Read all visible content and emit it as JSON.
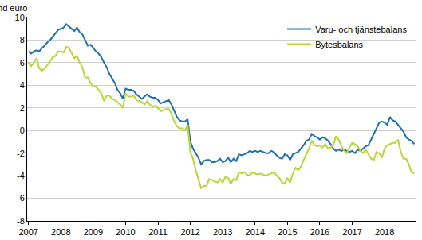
{
  "chart_data": {
    "type": "line",
    "ylabel": "md euro",
    "categories": [
      "2007",
      null,
      null,
      null,
      null,
      null,
      null,
      null,
      null,
      null,
      null,
      null,
      "2008",
      null,
      null,
      null,
      null,
      null,
      null,
      null,
      null,
      null,
      null,
      null,
      "2009",
      null,
      null,
      null,
      null,
      null,
      null,
      null,
      null,
      null,
      null,
      null,
      "2010",
      null,
      null,
      null,
      null,
      null,
      null,
      null,
      null,
      null,
      null,
      null,
      "2011",
      null,
      null,
      null,
      null,
      null,
      null,
      null,
      null,
      null,
      null,
      null,
      "2012",
      null,
      null,
      null,
      null,
      null,
      null,
      null,
      null,
      null,
      null,
      null,
      "2013",
      null,
      null,
      null,
      null,
      null,
      null,
      null,
      null,
      null,
      null,
      null,
      "2014",
      null,
      null,
      null,
      null,
      null,
      null,
      null,
      null,
      null,
      null,
      null,
      "2015",
      null,
      null,
      null,
      null,
      null,
      null,
      null,
      null,
      null,
      null,
      null,
      "2016",
      null,
      null,
      null,
      null,
      null,
      null,
      null,
      null,
      null,
      null,
      null,
      "2017",
      null,
      null,
      null,
      null,
      null,
      null,
      null,
      null,
      null,
      null,
      null,
      "2018",
      null,
      null,
      null,
      null,
      null,
      null,
      null,
      null,
      null,
      null,
      null
    ],
    "series": [
      {
        "name": "Varu- och tjänstebalans",
        "color": "#1f72b0",
        "values": [
          7.0,
          6.8,
          7.0,
          7.1,
          7.0,
          7.3,
          7.5,
          7.8,
          8.0,
          8.3,
          8.6,
          8.9,
          9.0,
          9.1,
          9.4,
          9.2,
          9.0,
          8.8,
          9.1,
          8.7,
          8.5,
          8.0,
          7.5,
          7.6,
          7.3,
          7.0,
          6.8,
          6.5,
          6.0,
          5.6,
          5.0,
          4.6,
          4.2,
          3.6,
          3.3,
          2.8,
          3.7,
          3.6,
          3.6,
          3.5,
          3.2,
          3.0,
          2.8,
          3.0,
          3.2,
          3.0,
          2.9,
          2.9,
          2.7,
          2.4,
          2.5,
          2.6,
          2.7,
          2.3,
          1.7,
          1.2,
          0.9,
          0.8,
          0.8,
          1.0,
          -1.0,
          -1.6,
          -2.0,
          -2.4,
          -3.0,
          -2.7,
          -2.6,
          -2.6,
          -2.8,
          -2.8,
          -2.7,
          -2.5,
          -2.8,
          -2.7,
          -2.4,
          -2.8,
          -2.5,
          -2.7,
          -2.1,
          -2.2,
          -2.1,
          -2.0,
          -1.8,
          -1.9,
          -1.8,
          -1.9,
          -1.8,
          -1.9,
          -2.0,
          -2.0,
          -1.8,
          -1.9,
          -2.2,
          -2.4,
          -2.5,
          -2.1,
          -2.2,
          -2.6,
          -2.1,
          -2.0,
          -1.9,
          -1.6,
          -1.3,
          -0.9,
          -0.8,
          -0.3,
          -0.5,
          -0.6,
          -0.8,
          -0.6,
          -0.7,
          -0.9,
          -1.2,
          -1.6,
          -1.8,
          -1.7,
          -1.8,
          -1.7,
          -1.8,
          -1.9,
          -1.8,
          -2.0,
          -1.7,
          -1.8,
          -1.6,
          -1.4,
          -1.3,
          -0.8,
          -0.3,
          0.3,
          0.7,
          0.8,
          0.7,
          0.5,
          1.2,
          0.9,
          0.8,
          0.5,
          0.2,
          -0.1,
          -0.6,
          -0.8,
          -0.9,
          -1.2
        ]
      },
      {
        "name": "Bytesbalans",
        "color": "#bdd534",
        "values": [
          6.0,
          5.7,
          6.0,
          6.4,
          5.5,
          5.3,
          5.5,
          5.8,
          6.1,
          6.5,
          6.6,
          7.0,
          7.0,
          6.9,
          7.4,
          7.3,
          6.8,
          6.4,
          6.6,
          6.0,
          5.6,
          4.7,
          4.7,
          4.2,
          3.9,
          3.9,
          3.6,
          3.3,
          2.6,
          3.1,
          3.1,
          2.8,
          2.7,
          2.5,
          2.3,
          2.0,
          3.3,
          3.0,
          3.0,
          3.1,
          2.7,
          2.6,
          2.5,
          2.3,
          2.6,
          2.3,
          2.1,
          2.2,
          2.0,
          1.7,
          1.8,
          1.9,
          1.9,
          1.5,
          0.8,
          0.4,
          0.2,
          0.2,
          0.0,
          0.5,
          -1.9,
          -2.5,
          -3.5,
          -4.3,
          -5.1,
          -4.9,
          -4.9,
          -4.3,
          -4.4,
          -4.5,
          -4.6,
          -4.3,
          -4.6,
          -4.1,
          -4.2,
          -4.7,
          -4.3,
          -4.4,
          -3.7,
          -3.8,
          -3.7,
          -3.9,
          -4.0,
          -3.7,
          -3.8,
          -3.9,
          -3.8,
          -3.9,
          -4.0,
          -3.9,
          -3.8,
          -3.7,
          -4.0,
          -4.2,
          -4.6,
          -4.7,
          -4.2,
          -4.6,
          -3.8,
          -3.3,
          -3.5,
          -3.2,
          -2.6,
          -2.1,
          -1.6,
          -0.9,
          -1.3,
          -1.4,
          -1.3,
          -1.5,
          -1.2,
          -1.6,
          -1.5,
          -1.3,
          -0.5,
          -0.8,
          -1.4,
          -1.8,
          -2.0,
          -1.5,
          -1.1,
          -1.2,
          -1.4,
          -1.8,
          -2.0,
          -1.7,
          -2.1,
          -2.5,
          -2.6,
          -1.9,
          -2.0,
          -2.4,
          -1.6,
          -1.3,
          -1.2,
          -1.1,
          -1.1,
          -0.8,
          -1.9,
          -2.5,
          -2.5,
          -3.0,
          -3.7,
          -3.8
        ]
      }
    ],
    "ylim": [
      -8,
      10
    ],
    "yticks": [
      -8,
      -6,
      -4,
      -2,
      0,
      2,
      4,
      6,
      8,
      10
    ],
    "grid": true,
    "legend": "top-right"
  }
}
